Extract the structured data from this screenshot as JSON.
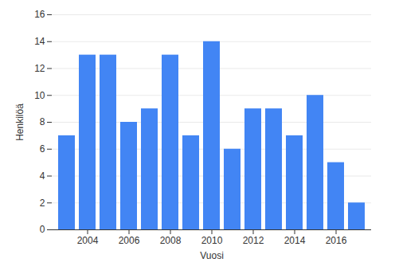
{
  "chart_data": {
    "type": "bar",
    "categories": [
      null,
      2004,
      null,
      2006,
      null,
      2008,
      null,
      2010,
      null,
      2012,
      null,
      2014,
      null,
      2016,
      null
    ],
    "values": [
      7,
      13,
      13,
      8,
      9,
      13,
      7,
      14,
      6,
      9,
      9,
      7,
      10,
      5,
      2
    ],
    "color": "#4285f4",
    "x_label": "Vuosi",
    "y_label": "Henkilöä",
    "ylim": [
      0,
      16
    ],
    "yticks": [
      0,
      2,
      4,
      6,
      8,
      10,
      12,
      14,
      16
    ],
    "grid": true
  }
}
